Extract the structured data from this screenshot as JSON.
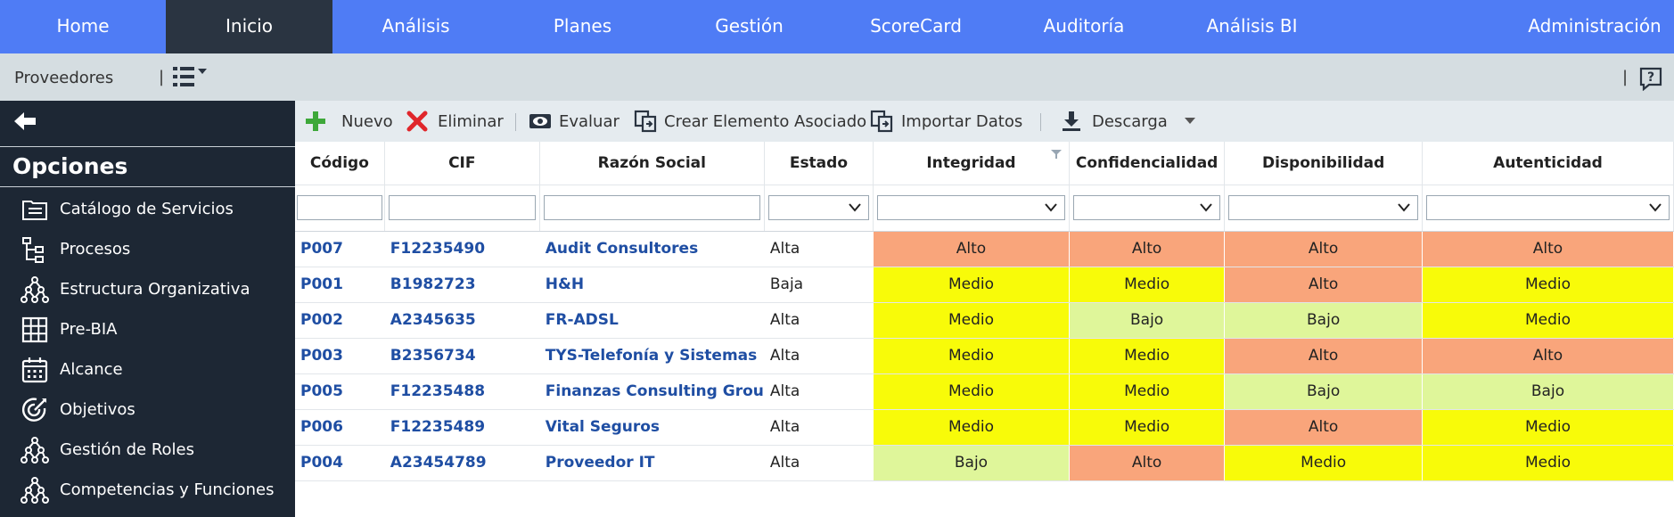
{
  "topnav": {
    "tabs": [
      {
        "label": "Home"
      },
      {
        "label": "Inicio",
        "active": true
      },
      {
        "label": "Análisis"
      },
      {
        "label": "Planes"
      },
      {
        "label": "Gestión"
      },
      {
        "label": "ScoreCard"
      },
      {
        "label": "Auditoría"
      },
      {
        "label": "Análisis BI"
      },
      {
        "label": "Administración"
      }
    ]
  },
  "subbar": {
    "breadcrumb": "Proveedores",
    "separator": "|"
  },
  "sidebar": {
    "title": "Opciones",
    "items": [
      {
        "label": "Catálogo de Servicios",
        "icon": "catalog-icon"
      },
      {
        "label": "Procesos",
        "icon": "process-icon"
      },
      {
        "label": "Estructura Organizativa",
        "icon": "org-structure-icon"
      },
      {
        "label": "Pre-BIA",
        "icon": "grid-icon"
      },
      {
        "label": "Alcance",
        "icon": "calendar-icon"
      },
      {
        "label": "Objetivos",
        "icon": "target-icon"
      },
      {
        "label": "Gestión de Roles",
        "icon": "org-structure-icon"
      },
      {
        "label": "Competencias y Funciones",
        "icon": "org-structure-icon"
      }
    ]
  },
  "toolbar": {
    "nuevo": "Nuevo",
    "eliminar": "Eliminar",
    "evaluar": "Evaluar",
    "crear": "Crear Elemento Asociado",
    "importar": "Importar Datos",
    "descarga": "Descarga"
  },
  "colors": {
    "Alto": "#f9a57b",
    "Medio": "#f8fb09",
    "Bajo": "#dff69a",
    "link": "#1f4ea3",
    "nav": "#4f7cf5"
  },
  "table": {
    "headers": {
      "codigo": "Código",
      "cif": "CIF",
      "razon": "Razón Social",
      "estado": "Estado",
      "integridad": "Integridad",
      "confidencialidad": "Confidencialidad",
      "disponibilidad": "Disponibilidad",
      "autenticidad": "Autenticidad"
    },
    "rows": [
      {
        "codigo": "P007",
        "cif": "F12235490",
        "razon": "Audit Consultores",
        "estado": "Alta",
        "integridad": "Alto",
        "confidencialidad": "Alto",
        "disponibilidad": "Alto",
        "autenticidad": "Alto"
      },
      {
        "codigo": "P001",
        "cif": "B1982723",
        "razon": "H&H",
        "estado": "Baja",
        "integridad": "Medio",
        "confidencialidad": "Medio",
        "disponibilidad": "Alto",
        "autenticidad": "Medio"
      },
      {
        "codigo": "P002",
        "cif": "A2345635",
        "razon": "FR-ADSL",
        "estado": "Alta",
        "integridad": "Medio",
        "confidencialidad": "Bajo",
        "disponibilidad": "Bajo",
        "autenticidad": "Medio"
      },
      {
        "codigo": "P003",
        "cif": "B2356734",
        "razon": "TYS-Telefonía y Sistemas",
        "estado": "Alta",
        "integridad": "Medio",
        "confidencialidad": "Medio",
        "disponibilidad": "Alto",
        "autenticidad": "Alto"
      },
      {
        "codigo": "P005",
        "cif": "F12235488",
        "razon": "Finanzas Consulting Grou",
        "estado": "Alta",
        "integridad": "Medio",
        "confidencialidad": "Medio",
        "disponibilidad": "Bajo",
        "autenticidad": "Bajo"
      },
      {
        "codigo": "P006",
        "cif": "F12235489",
        "razon": "Vital Seguros",
        "estado": "Alta",
        "integridad": "Medio",
        "confidencialidad": "Medio",
        "disponibilidad": "Alto",
        "autenticidad": "Medio"
      },
      {
        "codigo": "P004",
        "cif": "A23454789",
        "razon": "Proveedor IT",
        "estado": "Alta",
        "integridad": "Bajo",
        "confidencialidad": "Alto",
        "disponibilidad": "Medio",
        "autenticidad": "Medio"
      }
    ]
  }
}
